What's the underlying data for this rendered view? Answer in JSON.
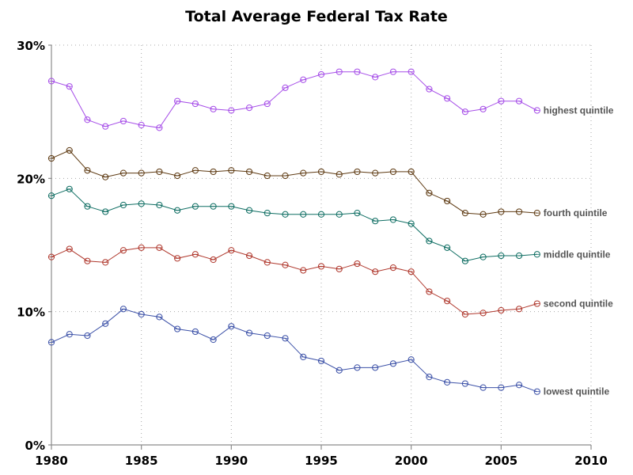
{
  "chart_data": {
    "type": "line",
    "title": "Total Average Federal Tax Rate",
    "xlabel": "",
    "ylabel": "",
    "xlim": [
      1980,
      2010
    ],
    "ylim": [
      0,
      30
    ],
    "x_ticks": [
      1980,
      1985,
      1990,
      1995,
      2000,
      2005,
      2010
    ],
    "x_tick_labels": [
      "1980",
      "1985",
      "1990",
      "1995",
      "2000",
      "2005",
      "2010"
    ],
    "y_ticks": [
      0,
      10,
      20,
      30
    ],
    "y_tick_labels": [
      "0%",
      "10%",
      "20%",
      "30%"
    ],
    "grid": true,
    "legend": "direct labels at right end of each line",
    "x": [
      1980,
      1981,
      1982,
      1983,
      1984,
      1985,
      1986,
      1987,
      1988,
      1989,
      1990,
      1991,
      1992,
      1993,
      1994,
      1995,
      1996,
      1997,
      1998,
      1999,
      2000,
      2001,
      2002,
      2003,
      2004,
      2005,
      2006,
      2007
    ],
    "series": [
      {
        "name": "highest quintile",
        "color": "#a64ee8",
        "values": [
          27.3,
          26.9,
          24.4,
          23.9,
          24.3,
          24.0,
          23.8,
          25.8,
          25.6,
          25.2,
          25.1,
          25.3,
          25.6,
          26.8,
          27.4,
          27.8,
          28.0,
          28.0,
          27.6,
          28.0,
          28.0,
          26.7,
          26.0,
          25.0,
          25.2,
          25.8,
          25.8,
          25.1
        ]
      },
      {
        "name": "fourth quintile",
        "color": "#5e3a12",
        "values": [
          21.5,
          22.1,
          20.6,
          20.1,
          20.4,
          20.4,
          20.5,
          20.2,
          20.6,
          20.5,
          20.6,
          20.5,
          20.2,
          20.2,
          20.4,
          20.5,
          20.3,
          20.5,
          20.4,
          20.5,
          20.5,
          18.9,
          18.3,
          17.4,
          17.3,
          17.5,
          17.5,
          17.4
        ]
      },
      {
        "name": "middle quintile",
        "color": "#0f6e63",
        "values": [
          18.7,
          19.2,
          17.9,
          17.5,
          18.0,
          18.1,
          18.0,
          17.6,
          17.9,
          17.9,
          17.9,
          17.6,
          17.4,
          17.3,
          17.3,
          17.3,
          17.3,
          17.4,
          16.8,
          16.9,
          16.6,
          15.3,
          14.8,
          13.8,
          14.1,
          14.2,
          14.2,
          14.3
        ]
      },
      {
        "name": "second quintile",
        "color": "#b0392e",
        "values": [
          14.1,
          14.7,
          13.8,
          13.7,
          14.6,
          14.8,
          14.8,
          14.0,
          14.3,
          13.9,
          14.6,
          14.2,
          13.7,
          13.5,
          13.1,
          13.4,
          13.2,
          13.6,
          13.0,
          13.3,
          13.0,
          11.5,
          10.8,
          9.8,
          9.9,
          10.1,
          10.2,
          10.6
        ]
      },
      {
        "name": "lowest quintile",
        "color": "#3d52a8",
        "values": [
          7.7,
          8.3,
          8.2,
          9.1,
          10.2,
          9.8,
          9.6,
          8.7,
          8.5,
          7.9,
          8.9,
          8.4,
          8.2,
          8.0,
          6.6,
          6.3,
          5.6,
          5.8,
          5.8,
          6.1,
          6.4,
          5.1,
          4.7,
          4.6,
          4.3,
          4.3,
          4.5,
          4.0
        ]
      }
    ]
  }
}
